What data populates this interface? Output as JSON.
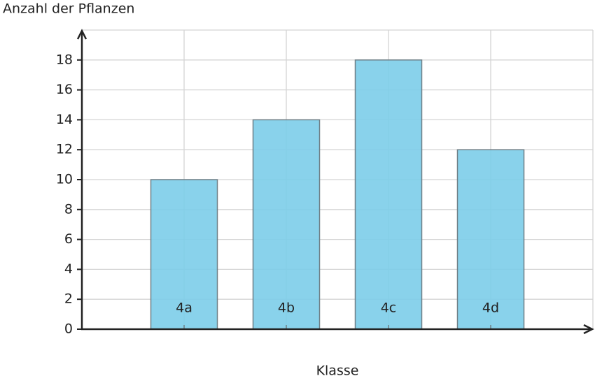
{
  "chart_data": {
    "type": "bar",
    "y_label": "Anzahl der Pflanzen",
    "x_label": "Klasse",
    "categories": [
      "4a",
      "4b",
      "4c",
      "4d"
    ],
    "values": [
      10,
      14,
      18,
      12
    ],
    "color": "#7ccde9",
    "ylim": [
      0,
      20
    ],
    "yticks": [
      0,
      2,
      4,
      6,
      8,
      10,
      12,
      14,
      16,
      18
    ],
    "grid": true
  }
}
